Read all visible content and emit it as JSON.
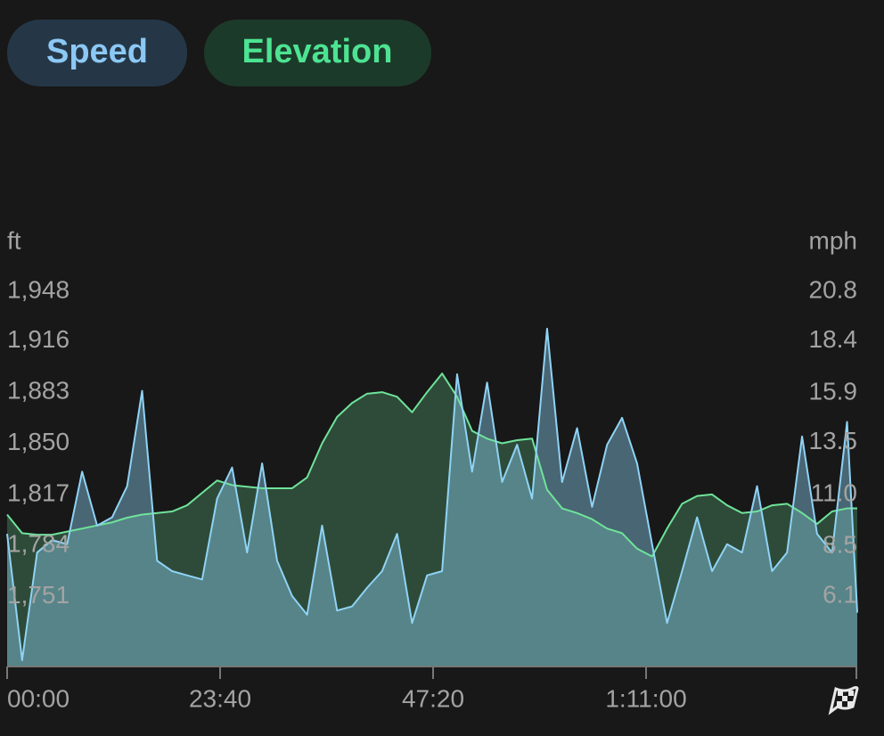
{
  "chart_data": {
    "type": "area",
    "y_label": "ft",
    "y2_label": "mph",
    "x": [
      0,
      100,
      200,
      300,
      400,
      500,
      600,
      700,
      800,
      900,
      1000,
      1100,
      1200,
      1300,
      1400,
      1500,
      1600,
      1700,
      1800,
      1900,
      2000,
      2100,
      2200,
      2300,
      2400,
      2500,
      2600,
      2700,
      2800,
      2900,
      3000,
      3100,
      3200,
      3300,
      3400,
      3500,
      3600,
      3700,
      3800,
      3900,
      4000,
      4100,
      4200,
      4300,
      4400,
      4500,
      4600,
      4700,
      4800,
      4900,
      5000,
      5100,
      5200,
      5300,
      5400,
      5500,
      5600,
      5668
    ],
    "xlim": [
      0,
      5668
    ],
    "xticks": [
      {
        "value": 0,
        "label": "00:00"
      },
      {
        "value": 1420,
        "label": "23:40"
      },
      {
        "value": 2840,
        "label": "47:20"
      },
      {
        "value": 4260,
        "label": "1:11:00"
      }
    ],
    "ylim": [
      1706,
      1948
    ],
    "yticks": [
      {
        "value": 1751,
        "label": "1,751"
      },
      {
        "value": 1784,
        "label": "1,784"
      },
      {
        "value": 1817,
        "label": "1,817"
      },
      {
        "value": 1850,
        "label": "1,850"
      },
      {
        "value": 1883,
        "label": "1,883"
      },
      {
        "value": 1916,
        "label": "1,916"
      },
      {
        "value": 1948,
        "label": "1,948"
      }
    ],
    "y2lim": [
      2.7,
      20.8
    ],
    "y2ticks": [
      6.1,
      8.5,
      {
        "value": 11,
        "label": "11.0"
      },
      13.5,
      15.9,
      18.4,
      20.8
    ],
    "series": [
      {
        "name": "Elevation",
        "color": "#6fe39a",
        "values": [
          1804,
          1792,
          1791,
          1791,
          1793,
          1795,
          1797,
          1799,
          1802,
          1804,
          1805,
          1806,
          1810,
          1818,
          1826,
          1823,
          1822,
          1821,
          1821,
          1821,
          1828,
          1850,
          1867,
          1876,
          1882,
          1883,
          1880,
          1870,
          1883,
          1895,
          1880,
          1858,
          1853,
          1850,
          1852,
          1853,
          1820,
          1808,
          1805,
          1801,
          1795,
          1792,
          1782,
          1777,
          1795,
          1811,
          1816,
          1817,
          1810,
          1805,
          1806,
          1810,
          1811,
          1805,
          1798,
          1806,
          1808,
          1808
        ]
      },
      {
        "name": "Speed",
        "color": "#8fd3f5",
        "axis": "y2",
        "values": [
          9.1,
          3.0,
          8.2,
          8.8,
          8.6,
          12.1,
          9.5,
          9.9,
          11.4,
          16.0,
          7.8,
          7.3,
          7.1,
          6.9,
          10.8,
          12.3,
          8.2,
          12.5,
          7.8,
          6.1,
          5.2,
          9.5,
          5.4,
          5.6,
          6.5,
          7.3,
          9.1,
          4.8,
          7.1,
          7.3,
          16.8,
          12.1,
          16.4,
          11.6,
          13.4,
          10.8,
          19.0,
          11.6,
          14.2,
          10.4,
          13.4,
          14.7,
          12.5,
          8.6,
          4.8,
          7.3,
          9.9,
          7.3,
          8.6,
          8.2,
          11.4,
          7.3,
          8.2,
          13.8,
          9.1,
          8.2,
          14.5,
          5.3
        ]
      }
    ]
  }
}
